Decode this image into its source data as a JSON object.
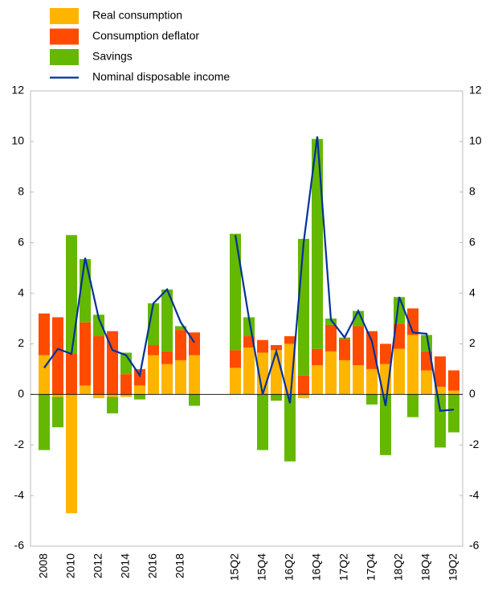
{
  "chart_data": {
    "type": "stacked-bar-line",
    "categories": [
      "2008",
      null,
      "2010",
      null,
      "2012",
      null,
      "2014",
      null,
      "2016",
      null,
      "2018",
      null,
      null,
      null,
      "15Q2",
      null,
      "15Q4",
      null,
      "16Q2",
      null,
      "16Q4",
      null,
      "17Q2",
      null,
      "17Q4",
      null,
      "18Q2",
      null,
      "18Q4",
      null,
      "19Q2"
    ],
    "series": [
      {
        "name": "Real consumption",
        "color": "#ffb400",
        "kind": "bar",
        "values": [
          1.55,
          -0.1,
          -4.7,
          0.35,
          -0.15,
          -0.1,
          -0.1,
          0.35,
          1.55,
          1.2,
          1.35,
          1.55,
          null,
          null,
          1.05,
          1.85,
          1.65,
          1.75,
          2.0,
          -0.15,
          1.15,
          1.7,
          1.35,
          1.15,
          1.0,
          1.2,
          1.8,
          2.35,
          0.95,
          0.3,
          0.15
        ]
      },
      {
        "name": "Consumption deflator",
        "color": "#ff4b00",
        "kind": "bar",
        "values": [
          1.65,
          3.05,
          1.6,
          2.5,
          2.3,
          2.5,
          0.8,
          0.65,
          0.4,
          0.5,
          1.2,
          0.9,
          null,
          null,
          0.7,
          0.45,
          0.5,
          0.2,
          0.3,
          0.75,
          0.65,
          1.05,
          0.85,
          1.55,
          1.5,
          0.8,
          1.0,
          1.05,
          0.75,
          1.2,
          0.8
        ]
      },
      {
        "name": "Savings",
        "color": "#65b800",
        "kind": "bar",
        "values": [
          -2.2,
          -1.2,
          4.7,
          2.5,
          0.85,
          -0.65,
          0.85,
          -0.2,
          1.65,
          2.45,
          0.15,
          -0.45,
          null,
          null,
          4.6,
          0.75,
          -2.2,
          -0.25,
          -2.65,
          5.4,
          8.3,
          0.25,
          0.05,
          0.6,
          -0.4,
          -2.4,
          1.05,
          -0.9,
          0.65,
          -2.1,
          -1.5
        ]
      },
      {
        "name": "Nominal disposable income",
        "color": "#003299",
        "kind": "line",
        "values": [
          1.05,
          1.8,
          1.6,
          5.4,
          3.0,
          1.75,
          1.55,
          0.75,
          3.6,
          4.15,
          2.85,
          2.05,
          null,
          null,
          6.3,
          3.0,
          0.0,
          1.7,
          -0.35,
          6.0,
          10.2,
          2.95,
          2.25,
          3.3,
          2.1,
          -0.45,
          3.85,
          2.45,
          2.4,
          -0.65,
          -0.6
        ]
      }
    ],
    "ylim": [
      -6,
      12
    ],
    "yticks": [
      -6,
      -4,
      -2,
      0,
      2,
      4,
      6,
      8,
      10,
      12
    ],
    "y2lim": [
      -6,
      12
    ],
    "y2ticks": [
      -6,
      -4,
      -2,
      0,
      2,
      4,
      6,
      8,
      10,
      12
    ]
  }
}
